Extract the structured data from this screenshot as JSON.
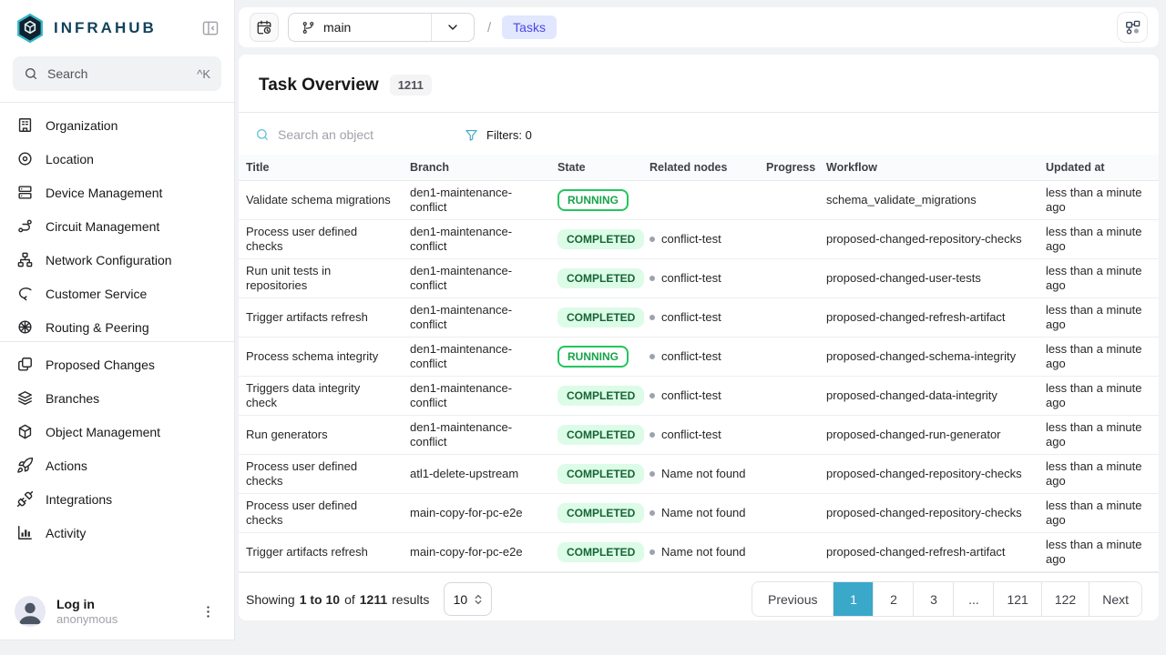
{
  "sidebar": {
    "logo_text": "INFRAHUB",
    "search": {
      "placeholder": "Search",
      "shortcut": "^K"
    },
    "groups": [
      {
        "items": [
          {
            "label": "Organization",
            "icon": "building"
          },
          {
            "label": "Location",
            "icon": "location"
          },
          {
            "label": "Device Management",
            "icon": "server"
          },
          {
            "label": "Circuit Management",
            "icon": "route"
          },
          {
            "label": "Network Configuration",
            "icon": "hierarchy"
          },
          {
            "label": "Customer Service",
            "icon": "hand"
          },
          {
            "label": "Routing & Peering",
            "icon": "wheel"
          }
        ]
      },
      {
        "items": [
          {
            "label": "Proposed Changes",
            "icon": "copy"
          },
          {
            "label": "Branches",
            "icon": "layers"
          },
          {
            "label": "Object Management",
            "icon": "cube"
          },
          {
            "label": "Actions",
            "icon": "rocket"
          },
          {
            "label": "Integrations",
            "icon": "plug"
          },
          {
            "label": "Activity",
            "icon": "chart"
          }
        ]
      }
    ],
    "user": {
      "name": "Log in",
      "subtitle": "anonymous"
    }
  },
  "topbar": {
    "branch_value": "main",
    "breadcrumb_separator": "/",
    "breadcrumb": "Tasks"
  },
  "header": {
    "title": "Task Overview",
    "count": "1211"
  },
  "toolbar": {
    "search_placeholder": "Search an object",
    "filters_label": "Filters: 0"
  },
  "table": {
    "columns": [
      "Title",
      "Branch",
      "State",
      "Related nodes",
      "Progress",
      "Workflow",
      "Updated at"
    ],
    "rows": [
      {
        "title": "Validate schema migrations",
        "branch": "den1-maintenance-conflict",
        "state": "RUNNING",
        "related": "",
        "progress": "",
        "workflow": "schema_validate_migrations",
        "updated": "less than a minute ago"
      },
      {
        "title": "Process user defined checks",
        "branch": "den1-maintenance-conflict",
        "state": "COMPLETED",
        "related": "conflict-test",
        "progress": "",
        "workflow": "proposed-changed-repository-checks",
        "updated": "less than a minute ago"
      },
      {
        "title": "Run unit tests in repositories",
        "branch": "den1-maintenance-conflict",
        "state": "COMPLETED",
        "related": "conflict-test",
        "progress": "",
        "workflow": "proposed-changed-user-tests",
        "updated": "less than a minute ago"
      },
      {
        "title": "Trigger artifacts refresh",
        "branch": "den1-maintenance-conflict",
        "state": "COMPLETED",
        "related": "conflict-test",
        "progress": "",
        "workflow": "proposed-changed-refresh-artifact",
        "updated": "less than a minute ago"
      },
      {
        "title": "Process schema integrity",
        "branch": "den1-maintenance-conflict",
        "state": "RUNNING",
        "related": "conflict-test",
        "progress": "",
        "workflow": "proposed-changed-schema-integrity",
        "updated": "less than a minute ago"
      },
      {
        "title": "Triggers data integrity check",
        "branch": "den1-maintenance-conflict",
        "state": "COMPLETED",
        "related": "conflict-test",
        "progress": "",
        "workflow": "proposed-changed-data-integrity",
        "updated": "less than a minute ago"
      },
      {
        "title": "Run generators",
        "branch": "den1-maintenance-conflict",
        "state": "COMPLETED",
        "related": "conflict-test",
        "progress": "",
        "workflow": "proposed-changed-run-generator",
        "updated": "less than a minute ago"
      },
      {
        "title": "Process user defined checks",
        "branch": "atl1-delete-upstream",
        "state": "COMPLETED",
        "related": "Name not found",
        "progress": "",
        "workflow": "proposed-changed-repository-checks",
        "updated": "less than a minute ago"
      },
      {
        "title": "Process user defined checks",
        "branch": "main-copy-for-pc-e2e",
        "state": "COMPLETED",
        "related": "Name not found",
        "progress": "",
        "workflow": "proposed-changed-repository-checks",
        "updated": "less than a minute ago"
      },
      {
        "title": "Trigger artifacts refresh",
        "branch": "main-copy-for-pc-e2e",
        "state": "COMPLETED",
        "related": "Name not found",
        "progress": "",
        "workflow": "proposed-changed-refresh-artifact",
        "updated": "less than a minute ago"
      }
    ]
  },
  "footer": {
    "showing": {
      "prefix": "Showing",
      "range": "1 to 10",
      "of": "of",
      "total": "1211",
      "suffix": "results"
    },
    "page_size": "10",
    "pagination": [
      {
        "label": "Previous"
      },
      {
        "label": "1",
        "active": true
      },
      {
        "label": "2"
      },
      {
        "label": "3"
      },
      {
        "label": "...",
        "ellipsis": true
      },
      {
        "label": "121"
      },
      {
        "label": "122"
      },
      {
        "label": "Next"
      }
    ]
  },
  "colors": {
    "accent": "#3aa8c9",
    "running_border": "#22c55e",
    "running_text": "#16a34a",
    "completed_bg": "#dcfce7",
    "completed_text": "#166534",
    "breadcrumb_bg": "#e0e7ff",
    "breadcrumb_text": "#4f46e5"
  }
}
